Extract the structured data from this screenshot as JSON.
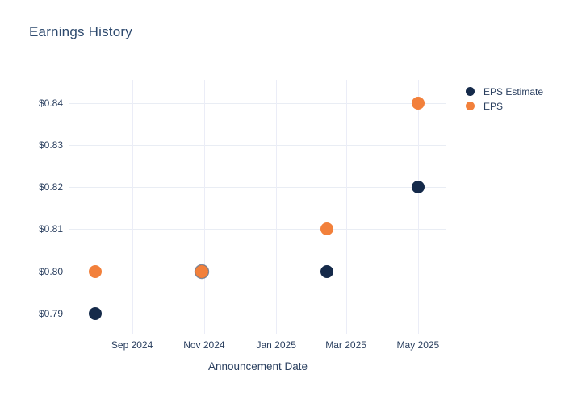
{
  "title": "Earnings History",
  "x_axis_title": "Announcement Date",
  "colors": {
    "eps_estimate": "#152a4a",
    "eps": "#f2803b",
    "text": "#2a3f5f",
    "title_text": "#2e4a6e",
    "grid": "#e9edf4",
    "background": "#ffffff"
  },
  "legend": {
    "items": [
      {
        "label": "EPS Estimate",
        "color": "#152a4a"
      },
      {
        "label": "EPS",
        "color": "#f2803b"
      }
    ]
  },
  "chart_data": {
    "type": "scatter",
    "title": "Earnings History",
    "xlabel": "Announcement Date",
    "ylabel": "",
    "grid": true,
    "legend_position": "outside-top-right",
    "x_ticks": [
      {
        "label": "Sep 2024",
        "date": "2024-09-01"
      },
      {
        "label": "Nov 2024",
        "date": "2024-11-01"
      },
      {
        "label": "Jan 2025",
        "date": "2025-01-01"
      },
      {
        "label": "Mar 2025",
        "date": "2025-03-01"
      },
      {
        "label": "May 2025",
        "date": "2025-05-01"
      }
    ],
    "y_ticks": [
      {
        "label": "$0.84",
        "value": 0.84
      },
      {
        "label": "$0.83",
        "value": 0.83
      },
      {
        "label": "$0.82",
        "value": 0.82
      },
      {
        "label": "$0.81",
        "value": 0.81
      },
      {
        "label": "$0.80",
        "value": 0.8
      },
      {
        "label": "$0.79",
        "value": 0.79
      }
    ],
    "x_range": [
      "2024-07-10",
      "2025-05-25"
    ],
    "y_range": [
      0.785,
      0.8455
    ],
    "series": [
      {
        "name": "EPS Estimate",
        "color": "#152a4a",
        "points": [
          {
            "date": "2024-08-01",
            "value": 0.79
          },
          {
            "date": "2024-10-30",
            "value": 0.8
          },
          {
            "date": "2025-02-13",
            "value": 0.8
          },
          {
            "date": "2025-05-01",
            "value": 0.82
          }
        ]
      },
      {
        "name": "EPS",
        "color": "#f2803b",
        "points": [
          {
            "date": "2024-08-01",
            "value": 0.8
          },
          {
            "date": "2024-10-30",
            "value": 0.8
          },
          {
            "date": "2025-02-13",
            "value": 0.81
          },
          {
            "date": "2025-05-01",
            "value": 0.84
          }
        ]
      }
    ]
  }
}
